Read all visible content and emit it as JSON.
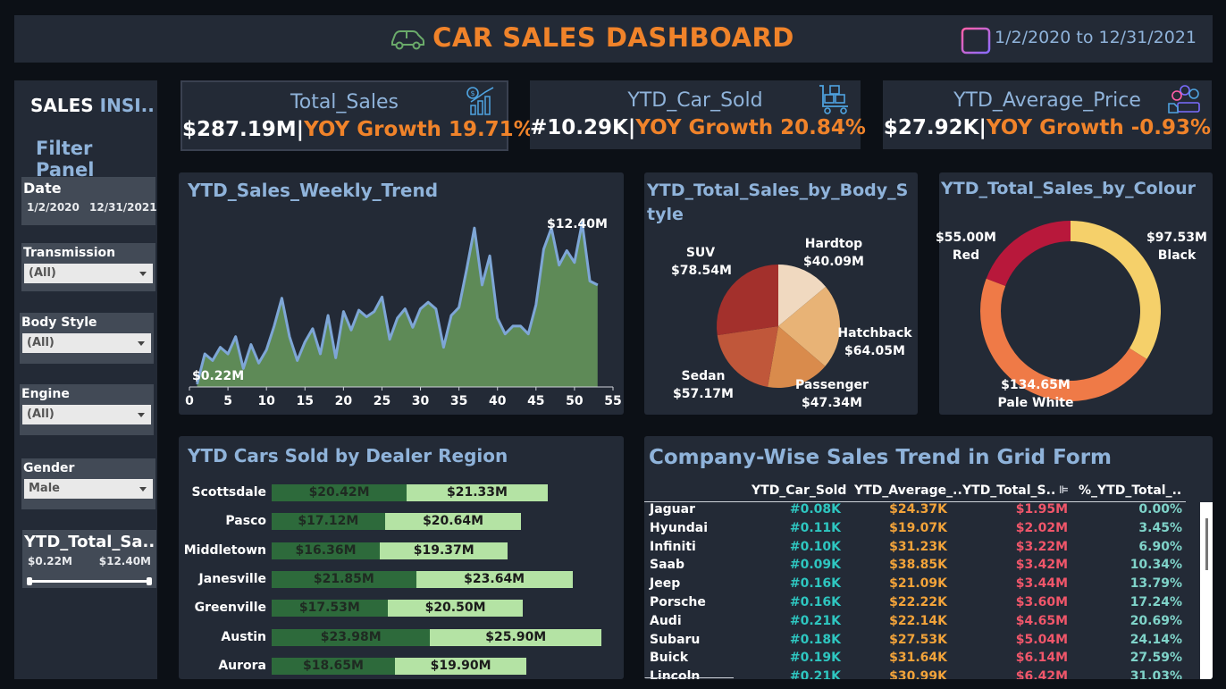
{
  "header": {
    "title": "CAR SALES DASHBOARD",
    "date_range": "1/2/2020 to 12/31/2021",
    "car_icon": "car-icon",
    "calendar_icon": "calendar-icon"
  },
  "sidebar": {
    "title_a": "SALES ",
    "title_b": "INSI..",
    "subtitle": "Filter Panel",
    "date": {
      "label": "Date",
      "start": "1/2/2020",
      "end": "12/31/2021"
    },
    "transmission": {
      "label": "Transmission",
      "value": "(All)"
    },
    "body_style": {
      "label": "Body Style",
      "value": "(All)"
    },
    "engine": {
      "label": "Engine",
      "value": "(All)"
    },
    "gender": {
      "label": "Gender",
      "value": "Male"
    },
    "slider": {
      "label": "YTD_Total_Sa..",
      "min": "$0.22M",
      "max": "$12.40M",
      "low_fraction": 0,
      "high_fraction": 1
    }
  },
  "kpis": [
    {
      "title": "Total_Sales",
      "value": "$287.19M",
      "sep": "|",
      "growth": "YOY Growth 19.71%",
      "icon": "sales-growth-icon"
    },
    {
      "title": "YTD_Car_Sold",
      "value": "#10.29K",
      "sep": "|",
      "growth": "YOY Growth 20.84%",
      "icon": "boxes-cart-icon"
    },
    {
      "title": "YTD_Average_Price",
      "value": "$27.92K",
      "sep": "|",
      "growth": "YOY Growth -0.93%",
      "icon": "money-hand-icon"
    }
  ],
  "weekly_trend": {
    "title": "YTD_Sales_Weekly_Trend",
    "max_label": "$12.40M",
    "min_label": "$0.22M",
    "ticks": [
      "0",
      "5",
      "10",
      "15",
      "20",
      "25",
      "30",
      "35",
      "40",
      "45",
      "50",
      "55"
    ]
  },
  "body_style": {
    "title": "YTD_Total_Sales_by_Body_Style",
    "slices": [
      {
        "name": "Hardtop",
        "value": "$40.09M",
        "num": 40.09,
        "color": "#f0d9c0"
      },
      {
        "name": "Hatchback",
        "value": "$64.05M",
        "num": 64.05,
        "color": "#e8b376"
      },
      {
        "name": "Passenger",
        "value": "$47.34M",
        "num": 47.34,
        "color": "#d98b4c"
      },
      {
        "name": "Sedan",
        "value": "$57.17M",
        "num": 57.17,
        "color": "#c0573a"
      },
      {
        "name": "SUV",
        "value": "$78.54M",
        "num": 78.54,
        "color": "#a3302c"
      }
    ]
  },
  "colour": {
    "title": "YTD_Total_Sales_by_Colour",
    "slices": [
      {
        "name": "Black",
        "value": "$97.53M",
        "num": 97.53,
        "color": "#f5d06a"
      },
      {
        "name": "Pale White",
        "value": "$134.65M",
        "num": 134.65,
        "color": "#ef7a47"
      },
      {
        "name": "Red",
        "value": "$55.00M",
        "num": 55.0,
        "color": "#b8183b"
      }
    ]
  },
  "region": {
    "title": "YTD Cars Sold by Dealer Region",
    "rows": [
      {
        "name": "Scottsdale",
        "prev": "$20.42M",
        "cur": "$21.33M"
      },
      {
        "name": "Pasco",
        "prev": "$17.12M",
        "cur": "$20.64M"
      },
      {
        "name": "Middletown",
        "prev": "$16.36M",
        "cur": "$19.37M"
      },
      {
        "name": "Janesville",
        "prev": "$21.85M",
        "cur": "$23.64M"
      },
      {
        "name": "Greenville",
        "prev": "$17.53M",
        "cur": "$20.50M"
      },
      {
        "name": "Austin",
        "prev": "$23.98M",
        "cur": "$25.90M"
      },
      {
        "name": "Aurora",
        "prev": "$18.65M",
        "cur": "$19.90M"
      }
    ]
  },
  "company_grid": {
    "title": "Company-Wise Sales Trend in Grid Form",
    "columns": [
      "YTD_Car_Sold",
      "YTD_Average_..",
      "YTD_Total_S..",
      "%_YTD_Total_.."
    ],
    "rows": [
      [
        "Jaguar",
        "#0.08K",
        "$24.37K",
        "$1.95M",
        "0.00%"
      ],
      [
        "Hyundai",
        "#0.11K",
        "$19.07K",
        "$2.02M",
        "3.45%"
      ],
      [
        "Infiniti",
        "#0.10K",
        "$31.23K",
        "$3.22M",
        "6.90%"
      ],
      [
        "Saab",
        "#0.09K",
        "$38.85K",
        "$3.42M",
        "10.34%"
      ],
      [
        "Jeep",
        "#0.16K",
        "$21.09K",
        "$3.44M",
        "13.79%"
      ],
      [
        "Porsche",
        "#0.16K",
        "$22.22K",
        "$3.60M",
        "17.24%"
      ],
      [
        "Audi",
        "#0.21K",
        "$22.14K",
        "$4.65M",
        "20.69%"
      ],
      [
        "Subaru",
        "#0.18K",
        "$27.53K",
        "$5.04M",
        "24.14%"
      ],
      [
        "Buick",
        "#0.19K",
        "$31.64K",
        "$6.14M",
        "27.59%"
      ],
      [
        "Lincoln",
        "#0.21K",
        "$30.99K",
        "$6.42M",
        "31.03%"
      ]
    ]
  },
  "chart_data": [
    {
      "type": "area",
      "title": "YTD_Sales_Weekly_Trend",
      "x": [
        1,
        2,
        3,
        4,
        5,
        6,
        7,
        8,
        9,
        10,
        11,
        12,
        13,
        14,
        15,
        16,
        17,
        18,
        19,
        20,
        21,
        22,
        23,
        24,
        25,
        26,
        27,
        28,
        29,
        30,
        31,
        32,
        33,
        34,
        35,
        36,
        37,
        38,
        39,
        40,
        41,
        42,
        43,
        44,
        45,
        46,
        47,
        48,
        49,
        50,
        51,
        52,
        53
      ],
      "series": [
        {
          "values": [
            0.22,
            2.5,
            2.0,
            3.0,
            2.5,
            3.8,
            1.4,
            3.2,
            1.8,
            2.8,
            4.6,
            6.7,
            3.8,
            2.0,
            3.4,
            4.4,
            2.5,
            5.4,
            2.2,
            5.7,
            4.3,
            5.8,
            5.3,
            5.7,
            6.8,
            3.6,
            5.2,
            5.9,
            4.5,
            5.9,
            6.4,
            5.9,
            3.0,
            5.4,
            6.0,
            8.9,
            12.0,
            7.7,
            9.9,
            5.2,
            4.0,
            4.6,
            4.6,
            4.0,
            6.2,
            10.4,
            12.0,
            9.2,
            10.3,
            9.4,
            12.4,
            8.0,
            7.7
          ]
        }
      ],
      "xlim": [
        0,
        55
      ],
      "ylim": [
        0,
        13.5
      ],
      "grid": false
    },
    {
      "type": "pie",
      "title": "YTD_Total_Sales_by_Body_Style",
      "categories": [
        "Hardtop",
        "Hatchback",
        "Passenger",
        "Sedan",
        "SUV"
      ],
      "values": [
        40.09,
        64.05,
        47.34,
        57.17,
        78.54
      ]
    },
    {
      "type": "pie",
      "title": "YTD_Total_Sales_by_Colour",
      "categories": [
        "Black",
        "Pale White",
        "Red"
      ],
      "values": [
        97.53,
        134.65,
        55.0
      ]
    },
    {
      "type": "bar",
      "title": "YTD Cars Sold by Dealer Region",
      "categories": [
        "Scottsdale",
        "Pasco",
        "Middletown",
        "Janesville",
        "Greenville",
        "Austin",
        "Aurora"
      ],
      "series": [
        {
          "values": [
            20.42,
            17.12,
            16.36,
            21.85,
            17.53,
            23.98,
            18.65
          ]
        },
        {
          "values": [
            21.33,
            20.64,
            19.37,
            23.64,
            20.5,
            25.9,
            19.9
          ]
        }
      ]
    }
  ]
}
